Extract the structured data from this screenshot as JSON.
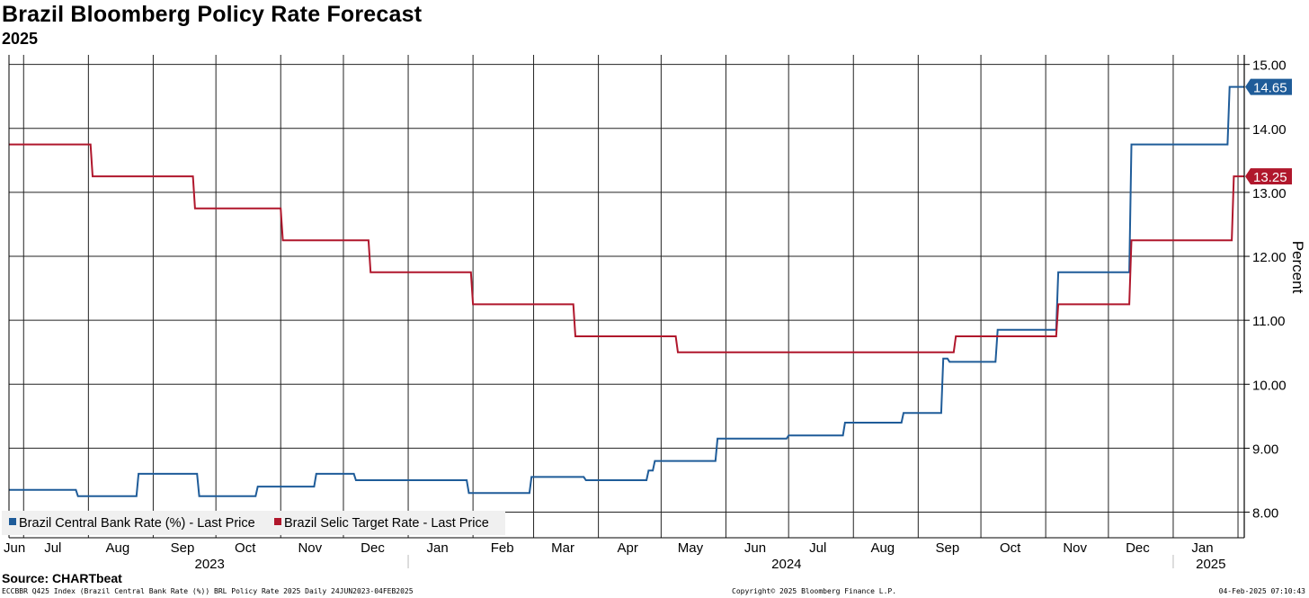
{
  "header": {
    "title": "Brazil Bloomberg Policy Rate Forecast",
    "subtitle": "2025"
  },
  "footer": {
    "source": "Source: CHARTbeat",
    "left": "ECCBBR Q425 Index (Brazil Central Bank Rate (%)) BRL Policy Rate 2025  Daily 24JUN2023-04FEB2025",
    "center": "Copyright© 2025 Bloomberg Finance L.P.",
    "right": "04-Feb-2025 07:10:43"
  },
  "chart_data": {
    "type": "line",
    "title": "Brazil Bloomberg Policy Rate Forecast",
    "subtitle": "2025",
    "ylabel": "Percent",
    "ylim": [
      7.6,
      15.15
    ],
    "yticks": [
      "15.00",
      "14.00",
      "13.00",
      "12.00",
      "11.00",
      "10.00",
      "9.00",
      "8.00"
    ],
    "xlim": [
      "2023-06-24",
      "2025-02-04"
    ],
    "x_tick_labels": [
      {
        "label": "Jun",
        "date": "2023-06-24"
      },
      {
        "label": "Jul",
        "date": "2023-07-15"
      },
      {
        "label": "Aug",
        "date": "2023-08-15"
      },
      {
        "label": "Sep",
        "date": "2023-09-15"
      },
      {
        "label": "Oct",
        "date": "2023-10-15"
      },
      {
        "label": "Nov",
        "date": "2023-11-15"
      },
      {
        "label": "Dec",
        "date": "2023-12-15"
      },
      {
        "label": "Jan",
        "date": "2024-01-15"
      },
      {
        "label": "Feb",
        "date": "2024-02-15"
      },
      {
        "label": "Mar",
        "date": "2024-03-15"
      },
      {
        "label": "Apr",
        "date": "2024-04-15"
      },
      {
        "label": "May",
        "date": "2024-05-15"
      },
      {
        "label": "Jun",
        "date": "2024-06-15"
      },
      {
        "label": "Jul",
        "date": "2024-07-15"
      },
      {
        "label": "Aug",
        "date": "2024-08-15"
      },
      {
        "label": "Sep",
        "date": "2024-09-15"
      },
      {
        "label": "Oct",
        "date": "2024-10-15"
      },
      {
        "label": "Nov",
        "date": "2024-11-15"
      },
      {
        "label": "Dec",
        "date": "2024-12-15"
      },
      {
        "label": "Jan",
        "date": "2025-01-15"
      }
    ],
    "year_labels": [
      {
        "label": "2023",
        "date": "2023-09-28"
      },
      {
        "label": "2024",
        "date": "2024-06-30"
      },
      {
        "label": "2025",
        "date": "2025-01-19"
      }
    ],
    "year_separators": [
      "2024-01-01",
      "2025-01-01"
    ],
    "grid": true,
    "legend": "bottom-left",
    "series": [
      {
        "name": "Brazil Central Bank Rate (%) - Last Price",
        "color": "#1f5c99",
        "last_value": "14.65",
        "x": [
          "2023-06-24",
          "2023-07-26",
          "2023-07-27",
          "2023-08-24",
          "2023-08-25",
          "2023-09-22",
          "2023-09-23",
          "2023-10-20",
          "2023-10-21",
          "2023-11-17",
          "2023-11-18",
          "2023-12-06",
          "2023-12-07",
          "2024-01-29",
          "2024-01-30",
          "2024-02-28",
          "2024-02-29",
          "2024-03-25",
          "2024-03-26",
          "2024-04-24",
          "2024-04-25",
          "2024-04-27",
          "2024-04-28",
          "2024-05-27",
          "2024-05-28",
          "2024-06-30",
          "2024-07-01",
          "2024-07-27",
          "2024-07-28",
          "2024-08-24",
          "2024-08-25",
          "2024-09-12",
          "2024-09-13",
          "2024-09-15",
          "2024-09-16",
          "2024-10-08",
          "2024-10-09",
          "2024-11-06",
          "2024-11-07",
          "2024-12-11",
          "2024-12-12",
          "2025-01-27",
          "2025-01-28",
          "2025-02-04"
        ],
        "y": [
          8.35,
          8.35,
          8.25,
          8.25,
          8.6,
          8.6,
          8.25,
          8.25,
          8.4,
          8.4,
          8.6,
          8.6,
          8.5,
          8.5,
          8.3,
          8.3,
          8.55,
          8.55,
          8.5,
          8.5,
          8.65,
          8.65,
          8.8,
          8.8,
          9.15,
          9.15,
          9.2,
          9.2,
          9.4,
          9.4,
          9.55,
          9.55,
          10.4,
          10.4,
          10.35,
          10.35,
          10.85,
          10.85,
          11.75,
          11.75,
          13.75,
          13.75,
          14.65,
          14.65
        ]
      },
      {
        "name": "Brazil Selic Target Rate - Last Price",
        "color": "#b0172c",
        "last_value": "13.25",
        "x": [
          "2023-06-24",
          "2023-08-02",
          "2023-08-03",
          "2023-09-20",
          "2023-09-21",
          "2023-11-01",
          "2023-11-02",
          "2023-12-13",
          "2023-12-14",
          "2024-01-31",
          "2024-02-01",
          "2024-03-20",
          "2024-03-21",
          "2024-05-08",
          "2024-05-09",
          "2024-09-18",
          "2024-09-19",
          "2024-11-06",
          "2024-11-07",
          "2024-12-11",
          "2024-12-12",
          "2025-01-29",
          "2025-01-30",
          "2025-02-04"
        ],
        "y": [
          13.75,
          13.75,
          13.25,
          13.25,
          12.75,
          12.75,
          12.25,
          12.25,
          11.75,
          11.75,
          11.25,
          11.25,
          10.75,
          10.75,
          10.5,
          10.5,
          10.75,
          10.75,
          11.25,
          11.25,
          12.25,
          12.25,
          13.25,
          13.25
        ]
      }
    ]
  }
}
